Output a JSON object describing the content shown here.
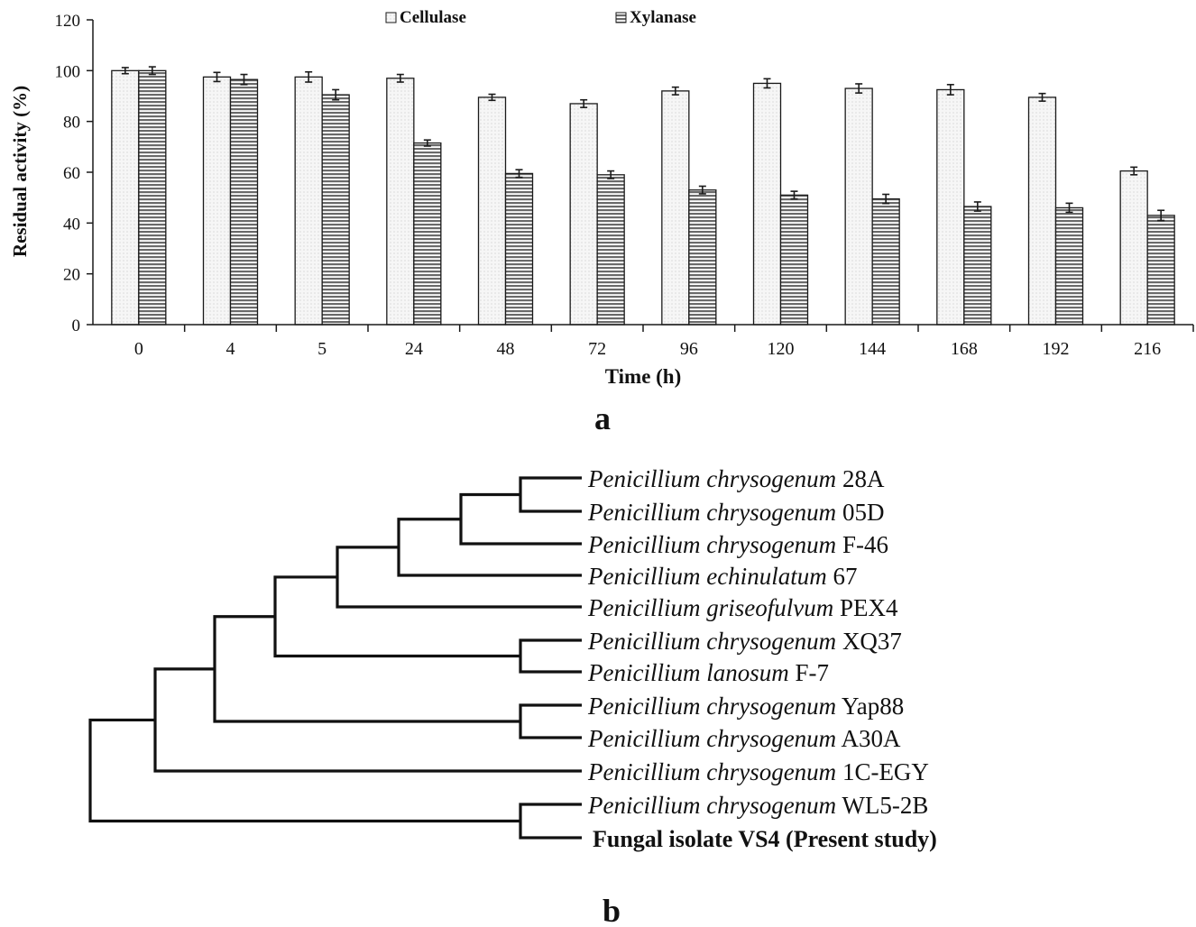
{
  "panel_a": {
    "label": "a",
    "chart_data": {
      "type": "bar",
      "categories": [
        "0",
        "4",
        "5",
        "24",
        "48",
        "72",
        "96",
        "120",
        "144",
        "168",
        "192",
        "216"
      ],
      "series": [
        {
          "name": "Cellulase",
          "values": [
            100,
            97.5,
            97.5,
            97,
            89.5,
            87,
            92,
            95,
            93,
            92.5,
            89.5,
            60.5
          ],
          "errors": [
            1.2,
            1.8,
            2,
            1.5,
            1.2,
            1.5,
            1.5,
            1.8,
            1.8,
            2,
            1.5,
            1.5
          ]
        },
        {
          "name": "Xylanase",
          "values": [
            100,
            96.5,
            90.5,
            71.5,
            59.5,
            59,
            53,
            51,
            49.5,
            46.5,
            46,
            43
          ],
          "errors": [
            1.5,
            2,
            2,
            1.2,
            1.5,
            1.5,
            1.5,
            1.5,
            1.8,
            1.8,
            1.8,
            2
          ]
        }
      ],
      "title": "",
      "xlabel": "Time (h)",
      "ylabel": "Residual activity (%)",
      "ylim": [
        0,
        120
      ],
      "yticks": [
        0,
        20,
        40,
        60,
        80,
        100,
        120
      ],
      "grid": false,
      "legend_position": "top",
      "colors": {
        "cellulase_fill": "#f4f4f4",
        "xylanase_fill": "#8e8e8e",
        "stroke": "#1a1a1a"
      }
    }
  },
  "panel_b": {
    "label": "b",
    "taxa": [
      {
        "genus": "Penicillium",
        "species": "chrysogenum",
        "strain": "28A",
        "bold": false
      },
      {
        "genus": "Penicillium",
        "species": "chrysogenum",
        "strain": "05D",
        "bold": false
      },
      {
        "genus": "Penicillium",
        "species": "chrysogenum",
        "strain": "F-46",
        "bold": false
      },
      {
        "genus": "Penicillium",
        "species": "echinulatum",
        "strain": "67",
        "bold": false
      },
      {
        "genus": "Penicillium",
        "species": "griseofulvum",
        "strain": "PEX4",
        "bold": false
      },
      {
        "genus": "Penicillium",
        "species": "chrysogenum",
        "strain": "XQ37",
        "bold": false
      },
      {
        "genus": "Penicillium",
        "species": "lanosum",
        "strain": "F-7",
        "bold": false
      },
      {
        "genus": "Penicillium",
        "species": "chrysogenum",
        "strain": "Yap88",
        "bold": false
      },
      {
        "genus": "Penicillium",
        "species": "chrysogenum",
        "strain": "A30A",
        "bold": false
      },
      {
        "genus": "Penicillium",
        "species": "chrysogenum",
        "strain": "1C-EGY",
        "bold": false
      },
      {
        "genus": "Penicillium",
        "species": "chrysogenum",
        "strain": "WL5-2B",
        "bold": false
      },
      {
        "label": "Fungal isolate VS4 (Present study)",
        "bold": true
      }
    ]
  }
}
